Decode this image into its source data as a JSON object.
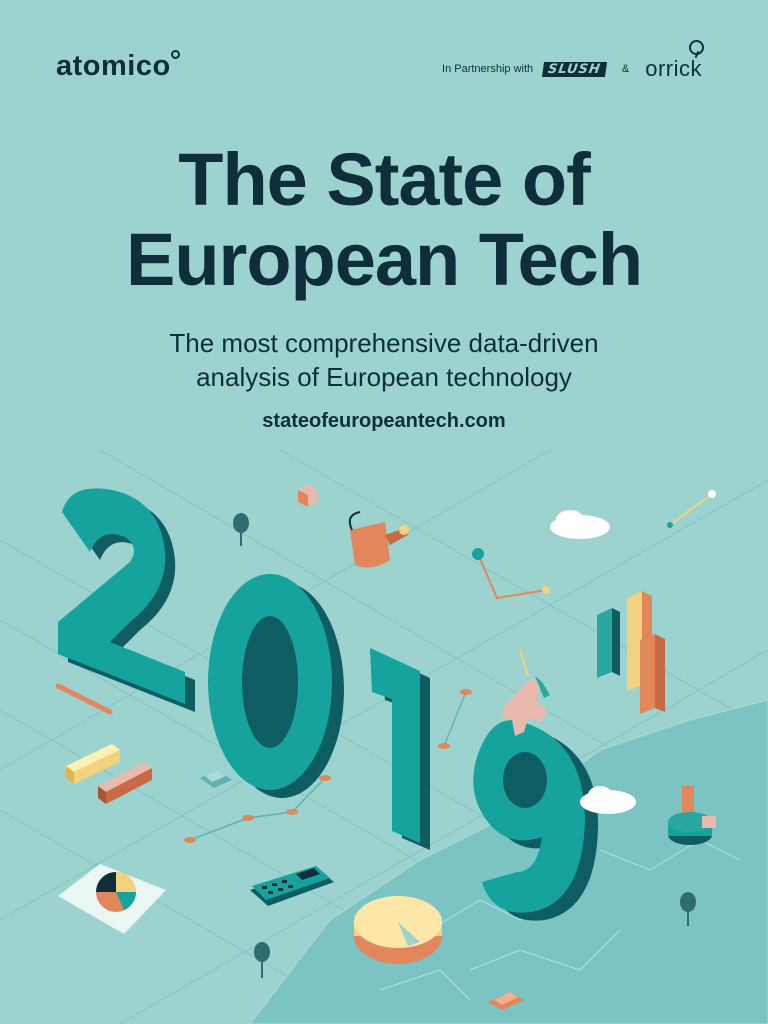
{
  "header": {
    "brand": "atomico",
    "partnership_label": "In Partnership with",
    "partner_one": "SLUSH",
    "ampersand": "&",
    "partner_two": "orrick"
  },
  "title": {
    "line1": "The State of",
    "line2": "European Tech"
  },
  "subtitle": {
    "line1": "The most comprehensive data-driven",
    "line2": "analysis of European technology"
  },
  "website": "stateofeuropeantech.com",
  "illustration": {
    "year_digits": [
      "2",
      "0",
      "1",
      "9"
    ],
    "icons": [
      "tree-icon",
      "watering-can-icon",
      "cloud-icon",
      "unicorn-icon",
      "calculator-icon",
      "pie-chart-icon",
      "bar-chart-icon",
      "pencil-icon",
      "car-icon",
      "exclamation-icon",
      "cube-icon"
    ]
  },
  "colors": {
    "background": "#9dd3ce",
    "ink": "#0f2e3b",
    "digit_face": "#16a39d",
    "digit_side": "#0e5d62",
    "accent_orange": "#e2865b",
    "accent_yellow": "#f2d27c",
    "map": "#7cc4c3"
  }
}
